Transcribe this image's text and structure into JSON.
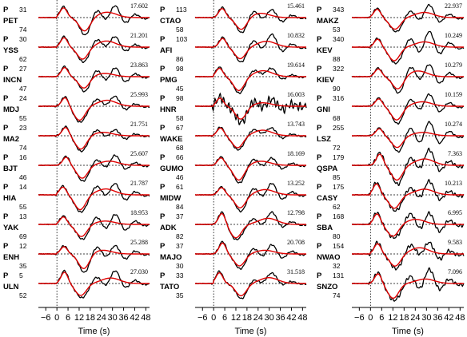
{
  "chart_data": {
    "type": "line",
    "panels": [
      {
        "rows": [
          {
            "phase": "P",
            "station": "PET",
            "azimuth": "31",
            "distance": "74",
            "amplitude": "17.602"
          },
          {
            "phase": "P",
            "station": "YSS",
            "azimuth": "30",
            "distance": "62",
            "amplitude": "21.201"
          },
          {
            "phase": "P",
            "station": "INCN",
            "azimuth": "27",
            "distance": "47",
            "amplitude": "23.863"
          },
          {
            "phase": "P",
            "station": "MDJ",
            "azimuth": "24",
            "distance": "55",
            "amplitude": "25.993"
          },
          {
            "phase": "P",
            "station": "MA2",
            "azimuth": "23",
            "distance": "74",
            "amplitude": "21.751"
          },
          {
            "phase": "P",
            "station": "BJT",
            "azimuth": "16",
            "distance": "46",
            "amplitude": "25.607"
          },
          {
            "phase": "P",
            "station": "HIA",
            "azimuth": "14",
            "distance": "55",
            "amplitude": "21.787"
          },
          {
            "phase": "P",
            "station": "YAK",
            "azimuth": "13",
            "distance": "69",
            "amplitude": "18.953"
          },
          {
            "phase": "P",
            "station": "ENH",
            "azimuth": "12",
            "distance": "35",
            "amplitude": "25.288"
          },
          {
            "phase": "P",
            "station": "ULN",
            "azimuth": "5",
            "distance": "52",
            "amplitude": "27.030"
          }
        ],
        "xlabel": "Time (s)"
      },
      {
        "rows": [
          {
            "phase": "P",
            "station": "CTAO",
            "azimuth": "113",
            "distance": "58",
            "amplitude": "15.461"
          },
          {
            "phase": "P",
            "station": "AFI",
            "azimuth": "103",
            "distance": "86",
            "amplitude": "10.832"
          },
          {
            "phase": "P",
            "station": "PMG",
            "azimuth": "98",
            "distance": "45",
            "amplitude": "19.614"
          },
          {
            "phase": "P",
            "station": "HNR",
            "azimuth": "98",
            "distance": "58",
            "amplitude": "16.003"
          },
          {
            "phase": "P",
            "station": "WAKE",
            "azimuth": "67",
            "distance": "68",
            "amplitude": "13.743"
          },
          {
            "phase": "P",
            "station": "GUMO",
            "azimuth": "66",
            "distance": "46",
            "amplitude": "18.169"
          },
          {
            "phase": "P",
            "station": "MIDW",
            "azimuth": "61",
            "distance": "84",
            "amplitude": "13.252"
          },
          {
            "phase": "P",
            "station": "ADK",
            "azimuth": "37",
            "distance": "82",
            "amplitude": "12.798"
          },
          {
            "phase": "P",
            "station": "MAJO",
            "azimuth": "37",
            "distance": "30",
            "amplitude": "20.708"
          },
          {
            "phase": "P",
            "station": "TATO",
            "azimuth": "33",
            "distance": "35",
            "amplitude": "31.518"
          }
        ],
        "xlabel": "Time (s)"
      },
      {
        "rows": [
          {
            "phase": "P",
            "station": "MAKZ",
            "azimuth": "343",
            "distance": "53",
            "amplitude": "22.937"
          },
          {
            "phase": "P",
            "station": "KEV",
            "azimuth": "340",
            "distance": "88",
            "amplitude": "10.249"
          },
          {
            "phase": "P",
            "station": "KIEV",
            "azimuth": "322",
            "distance": "90",
            "amplitude": "10.279"
          },
          {
            "phase": "P",
            "station": "GNI",
            "azimuth": "316",
            "distance": "68",
            "amplitude": "10.159"
          },
          {
            "phase": "P",
            "station": "LSZ",
            "azimuth": "255",
            "distance": "72",
            "amplitude": "10.274"
          },
          {
            "phase": "P",
            "station": "QSPA",
            "azimuth": "179",
            "distance": "85",
            "amplitude": "7.363"
          },
          {
            "phase": "P",
            "station": "CASY",
            "azimuth": "175",
            "distance": "62",
            "amplitude": "10.213"
          },
          {
            "phase": "P",
            "station": "SBA",
            "azimuth": "168",
            "distance": "80",
            "amplitude": "6.995"
          },
          {
            "phase": "P",
            "station": "NWAO",
            "azimuth": "154",
            "distance": "32",
            "amplitude": "9.583"
          },
          {
            "phase": "P",
            "station": "SNZO",
            "azimuth": "131",
            "distance": "74",
            "amplitude": "7.096"
          }
        ],
        "xlabel": "Time (s)"
      }
    ],
    "x_ticks": [
      -6,
      0,
      6,
      12,
      18,
      24,
      30,
      36,
      42,
      48
    ],
    "xlim": [
      -10,
      50
    ],
    "series": [
      {
        "color": "#000000"
      },
      {
        "color": "#e00000"
      }
    ],
    "zero_line": "dashed",
    "onset_line": "dotted"
  }
}
